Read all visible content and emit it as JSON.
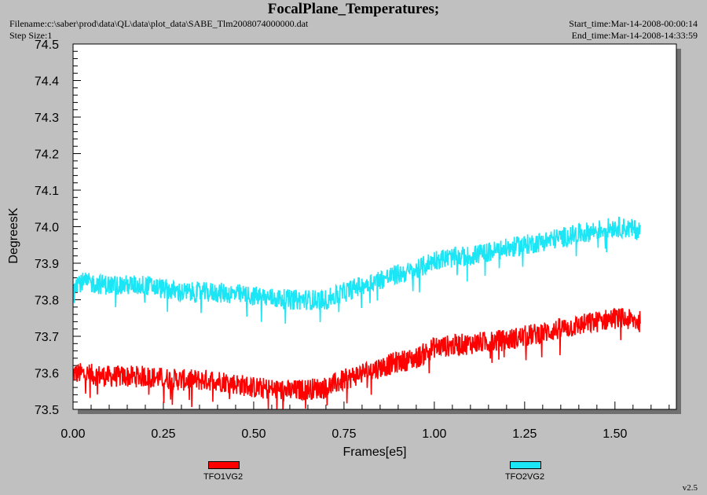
{
  "header": {
    "title": "FocalPlane_Temperatures;",
    "filename": "Filename:c:\\saber\\prod\\data\\QL\\data\\plot_data\\SABE_Tlm2008074000000.dat",
    "step_size": "Step Size:1",
    "start_time": "Start_time:Mar-14-2008-00:00:14",
    "end_time": "End_time:Mar-14-2008-14:33:59"
  },
  "footer": {
    "version": "v2.5"
  },
  "colors": {
    "series1": "#ff0000",
    "series2": "#1ce6f6",
    "plot_bg": "#ffffff",
    "page_bg": "#c0c0c0"
  },
  "chart_data": {
    "type": "line",
    "xlabel": "Frames[e5]",
    "ylabel": "DegreesK",
    "xlim": [
      0,
      1.67
    ],
    "ylim": [
      73.5,
      74.5
    ],
    "xticks": [
      "0.00",
      "0.25",
      "0.50",
      "0.75",
      "1.00",
      "1.25",
      "1.50"
    ],
    "yticks": [
      "73.5",
      "73.6",
      "73.7",
      "73.8",
      "73.9",
      "74.0",
      "74.1",
      "74.2",
      "74.3",
      "74.4",
      "74.5"
    ],
    "legend_position": "bottom",
    "grid": false,
    "series": [
      {
        "name": "TFO1VG2",
        "x": [
          0.0,
          0.1,
          0.2,
          0.3,
          0.4,
          0.5,
          0.6,
          0.7,
          0.8,
          0.9,
          0.95,
          1.0,
          1.1,
          1.2,
          1.3,
          1.4,
          1.5,
          1.57
        ],
        "y": [
          73.6,
          73.59,
          73.59,
          73.58,
          73.58,
          73.56,
          73.55,
          73.56,
          73.6,
          73.63,
          73.64,
          73.67,
          73.68,
          73.69,
          73.71,
          73.73,
          73.75,
          73.74
        ],
        "noise": 0.03
      },
      {
        "name": "TFO2VG2",
        "x": [
          0.0,
          0.1,
          0.2,
          0.3,
          0.4,
          0.5,
          0.6,
          0.7,
          0.8,
          0.9,
          0.95,
          1.0,
          1.1,
          1.2,
          1.3,
          1.4,
          1.5,
          1.57
        ],
        "y": [
          73.85,
          73.84,
          73.84,
          73.82,
          73.82,
          73.81,
          73.8,
          73.8,
          73.84,
          73.87,
          73.88,
          73.91,
          73.92,
          73.94,
          73.96,
          73.98,
          74.0,
          73.99
        ],
        "noise": 0.028
      }
    ]
  }
}
